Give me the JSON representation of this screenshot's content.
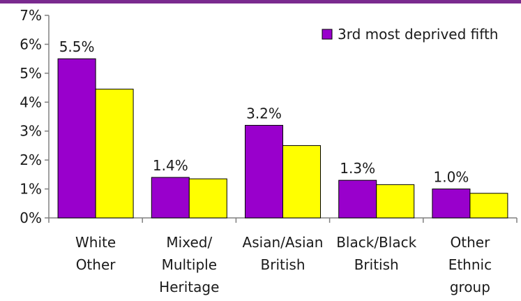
{
  "chart_data": {
    "type": "bar",
    "categories": [
      [
        "White",
        "Other"
      ],
      [
        "Mixed/",
        "Multiple",
        "Heritage"
      ],
      [
        "Asian/Asian",
        "British"
      ],
      [
        "Black/Black",
        "British"
      ],
      [
        "Other",
        "Ethnic",
        "group"
      ]
    ],
    "series": [
      {
        "name": "3rd most deprived fifth",
        "color": "#9900cc",
        "values": [
          5.5,
          1.4,
          3.2,
          1.3,
          1.0
        ],
        "data_labels": [
          "5.5%",
          "1.4%",
          "3.2%",
          "1.3%",
          "1.0%"
        ]
      },
      {
        "color": "#ffff00",
        "values": [
          4.45,
          1.35,
          2.5,
          1.15,
          0.85
        ]
      }
    ],
    "y_ticks": [
      "0%",
      "1%",
      "2%",
      "3%",
      "4%",
      "5%",
      "6%",
      "7%"
    ],
    "ylim": [
      0,
      7
    ],
    "grid": false,
    "legend": {
      "position": "top-right",
      "entries": [
        "3rd most deprived fifth"
      ]
    },
    "title": "",
    "xlabel": "",
    "ylabel": ""
  },
  "colors": {
    "top_bar": "#7a2a8f",
    "axis": "#808080",
    "bar_stroke": "#000000"
  }
}
